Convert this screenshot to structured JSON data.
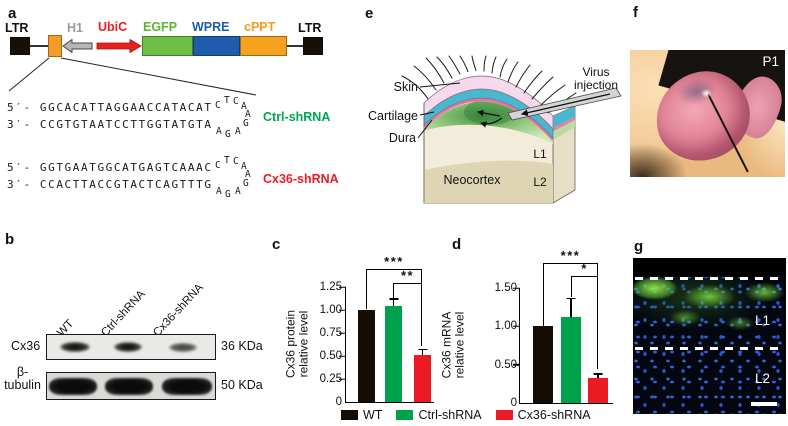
{
  "panels": {
    "a": "a",
    "b": "b",
    "c": "c",
    "d": "d",
    "e": "e",
    "f": "f",
    "g": "g"
  },
  "panel_a": {
    "construct": {
      "ltr_left": "LTR",
      "h1": "H1",
      "ubic": "UbiC",
      "egfp": "EGFP",
      "wpre": "WPRE",
      "cppt": "cPPT",
      "ltr_right": "LTR",
      "colors": {
        "ltr": "#161006",
        "insert": "#f59b27",
        "h1_arrow": "#b6b6b6",
        "ubic_arrow": "#e8211c",
        "egfp_box": "#6cbe45",
        "wpre_box": "#1f5cad",
        "cppt_box": "#f5a21f",
        "h1_label": "#9b9b9b",
        "ubic_label": "#e8211c",
        "egfp_label": "#5cb434",
        "wpre_label": "#1f5cad",
        "cppt_label": "#f59b1e"
      }
    },
    "sequences": [
      {
        "name": "Ctrl-shRNA",
        "color": "#00a651",
        "five_prime": "5′- GGCACATTAGGAACCATACAT",
        "three_prime": "3′- CCGTGTAATCCTTGGTATGTA",
        "loop": [
          "C",
          "T",
          "C",
          "A",
          "A",
          "G",
          "A",
          "G",
          "A"
        ]
      },
      {
        "name": "Cx36-shRNA",
        "color": "#ed1c24",
        "five_prime": "5′- GGTGAATGGCATGAGTCAAAC",
        "three_prime": "3′- CCACTTACCGTACTCAGTTTG",
        "loop": [
          "C",
          "T",
          "C",
          "A",
          "A",
          "G",
          "A",
          "G",
          "A"
        ]
      }
    ]
  },
  "panel_b": {
    "lanes": [
      "WT",
      "Ctrl-shRNA",
      "Cx36-shRNA"
    ],
    "row1_label": "Cx36",
    "row1_marker": "36 KDa",
    "row2_label_line1": "β-",
    "row2_label_line2": "tubulin",
    "row2_marker": "50 KDa"
  },
  "panel_e": {
    "skin": "Skin",
    "cartilage": "Cartilage",
    "dura": "Dura",
    "neocortex": "Neocortex",
    "l1": "L1",
    "l2": "L2",
    "virus_line1": "Virus",
    "virus_line2": "injection"
  },
  "panel_f": {
    "tag": "P1"
  },
  "panel_g": {
    "l1": "L1",
    "l2": "L2"
  },
  "legend": {
    "items": [
      {
        "label": "WT",
        "color": "#150d05"
      },
      {
        "label": "Ctrl-shRNA",
        "color": "#00a14b"
      },
      {
        "label": "Cx36-shRNA",
        "color": "#ec1b23"
      }
    ]
  },
  "chart_data": [
    {
      "type": "bar",
      "title": "",
      "categories": [
        "WT",
        "Ctrl-shRNA",
        "Cx36-shRNA"
      ],
      "values": [
        1.0,
        1.04,
        0.51
      ],
      "errors": [
        null,
        0.09,
        0.07
      ],
      "bar_colors": [
        "#150d05",
        "#00a14b",
        "#ec1b23"
      ],
      "ylabel": "Cx36 protein relative level",
      "ylabel_lines": [
        "Cx36 protein",
        "relative level"
      ],
      "xlabel": "",
      "ylim": [
        0,
        1.25
      ],
      "grid": false,
      "legend_position": "bottom",
      "ytick_labels_top_to_bottom": [
        "1.25",
        "1.00",
        "0.75",
        "0.50",
        "0.25",
        "0"
      ],
      "significance": [
        {
          "compare": [
            "WT",
            "Cx36-shRNA"
          ],
          "label": "***"
        },
        {
          "compare": [
            "Ctrl-shRNA",
            "Cx36-shRNA"
          ],
          "label": "**"
        }
      ]
    },
    {
      "type": "bar",
      "title": "",
      "categories": [
        "WT",
        "Ctrl-shRNA",
        "Cx36-shRNA"
      ],
      "values": [
        1.0,
        1.12,
        0.32
      ],
      "errors": [
        null,
        0.25,
        0.07
      ],
      "bar_colors": [
        "#150d05",
        "#00a14b",
        "#ec1b23"
      ],
      "ylabel": "Cx36 mRNA relative level",
      "ylabel_lines": [
        "Cx36 mRNA",
        "relative level"
      ],
      "xlabel": "",
      "ylim": [
        0,
        1.5
      ],
      "grid": false,
      "legend_position": "bottom",
      "ytick_labels_top_to_bottom": [
        "1.50",
        "1.00",
        "0.50",
        "0"
      ],
      "significance": [
        {
          "compare": [
            "WT",
            "Cx36-shRNA"
          ],
          "label": "***"
        },
        {
          "compare": [
            "Ctrl-shRNA",
            "Cx36-shRNA"
          ],
          "label": "*"
        }
      ]
    }
  ]
}
